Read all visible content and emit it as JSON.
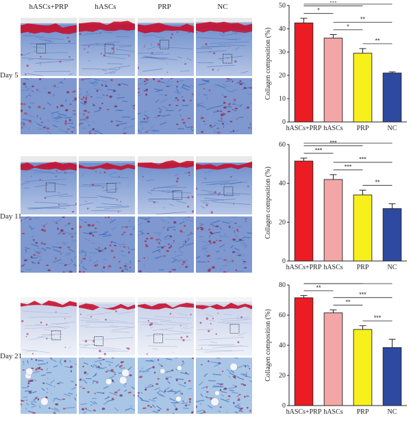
{
  "columns": [
    "hASCs+PRP",
    "hASCs",
    "PRP",
    "NC"
  ],
  "days": [
    "Day 5",
    "Day 11",
    "Day 21"
  ],
  "colors": {
    "hASCs+PRP": "#ec1c24",
    "hASCs": "#f4a6a6",
    "PRP": "#f7f01c",
    "NC": "#2d4aa0"
  },
  "chart_data": [
    {
      "type": "bar",
      "day": "Day 5",
      "categories": [
        "hASCs+PRP",
        "hASCs",
        "PRP",
        "NC"
      ],
      "values": [
        42.5,
        36,
        29.5,
        21
      ],
      "errors": [
        2,
        1.5,
        2,
        0.5
      ],
      "ylabel": "Collagen composition (%)",
      "ylim": [
        0,
        50
      ],
      "yticks": [
        0,
        10,
        20,
        30,
        40,
        50
      ],
      "significance": [
        {
          "from": 0,
          "to": 1,
          "label": "*"
        },
        {
          "from": 0,
          "to": 2,
          "label": "***"
        },
        {
          "from": 0,
          "to": 3,
          "label": "***"
        },
        {
          "from": 1,
          "to": 2,
          "label": "*"
        },
        {
          "from": 1,
          "to": 3,
          "label": "**"
        },
        {
          "from": 2,
          "to": 3,
          "label": "**"
        }
      ]
    },
    {
      "type": "bar",
      "day": "Day 11",
      "categories": [
        "hASCs+PRP",
        "hASCs",
        "PRP",
        "NC"
      ],
      "values": [
        51.5,
        42,
        34,
        27
      ],
      "errors": [
        1.5,
        2.5,
        2.5,
        2.5
      ],
      "ylabel": "Collagen composition (%)",
      "ylim": [
        0,
        60
      ],
      "yticks": [
        0,
        20,
        40,
        60
      ],
      "significance": [
        {
          "from": 0,
          "to": 1,
          "label": "***"
        },
        {
          "from": 0,
          "to": 2,
          "label": "***"
        },
        {
          "from": 0,
          "to": 3,
          "label": "***"
        },
        {
          "from": 1,
          "to": 2,
          "label": "***"
        },
        {
          "from": 1,
          "to": 3,
          "label": "***"
        },
        {
          "from": 2,
          "to": 3,
          "label": "**"
        }
      ]
    },
    {
      "type": "bar",
      "day": "Day 21",
      "categories": [
        "hASCs+PRP",
        "hASCs",
        "PRP",
        "NC"
      ],
      "values": [
        71.5,
        61.5,
        50.5,
        38.5
      ],
      "errors": [
        1.5,
        2,
        2.5,
        5.5
      ],
      "ylabel": "Collagen composition (%)",
      "ylim": [
        0,
        80
      ],
      "yticks": [
        0,
        20,
        40,
        60,
        80
      ],
      "significance": [
        {
          "from": 0,
          "to": 1,
          "label": "**"
        },
        {
          "from": 0,
          "to": 2,
          "label": "***"
        },
        {
          "from": 0,
          "to": 3,
          "label": "***"
        },
        {
          "from": 1,
          "to": 2,
          "label": "**"
        },
        {
          "from": 1,
          "to": 3,
          "label": "***"
        },
        {
          "from": 2,
          "to": 3,
          "label": "***"
        }
      ]
    }
  ]
}
